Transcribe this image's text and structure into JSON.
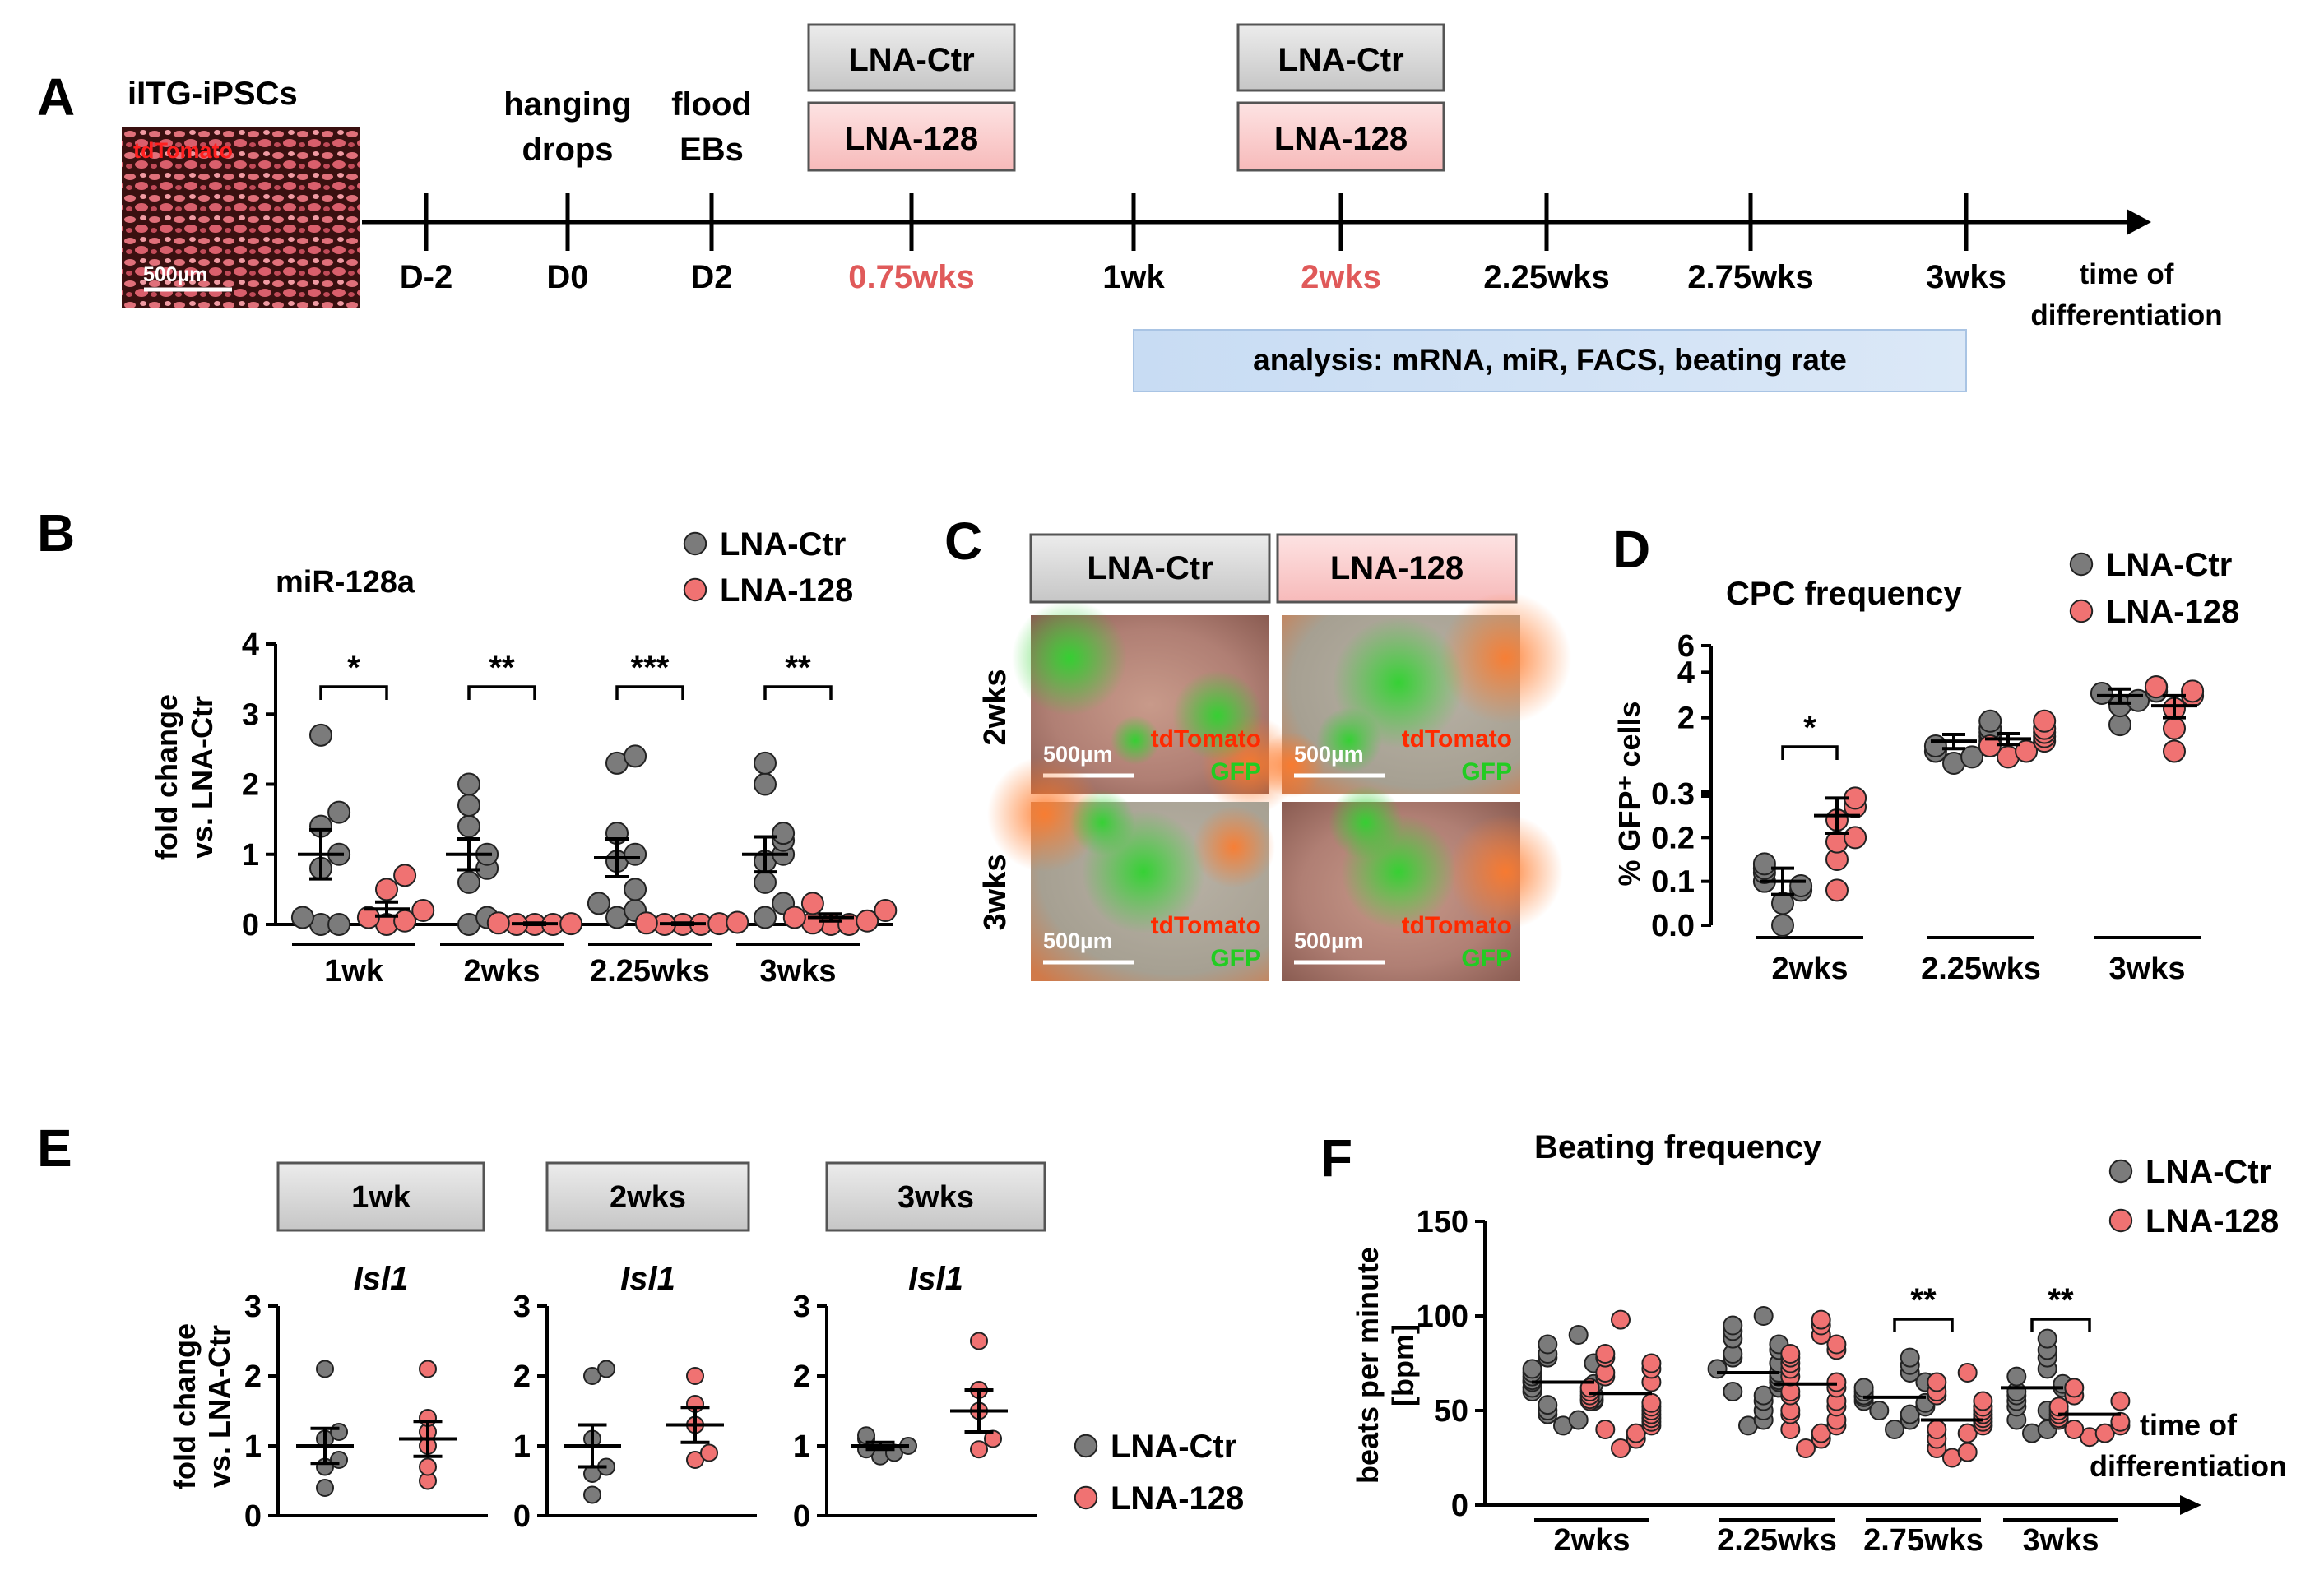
{
  "colors": {
    "ctr": "#7b7b7b",
    "lna128": "#f07272",
    "red_label": "#e05a5a",
    "tdtomato": "#ff2a00",
    "gfp": "#22cc22",
    "analysis_bar": "#cfe1f5"
  },
  "panelA": {
    "letter": "A",
    "ipsc_title": "iITG-iPSCs",
    "ipsc_overlay": "tdTomato",
    "ipsc_scale": "500µm",
    "steps": [
      {
        "id": "d-2",
        "upper": "",
        "lower": "",
        "tick": "D-2",
        "highlight": false
      },
      {
        "id": "d0",
        "upper": "hanging",
        "lower": "drops",
        "tick": "D0",
        "highlight": false
      },
      {
        "id": "d2",
        "upper": "flood",
        "lower": "EBs",
        "tick": "D2",
        "highlight": false
      },
      {
        "id": "0.75wks",
        "upper": "",
        "lower": "",
        "tick": "0.75wks",
        "highlight": true
      },
      {
        "id": "1wk",
        "upper": "",
        "lower": "",
        "tick": "1wk",
        "highlight": false
      },
      {
        "id": "2wks",
        "upper": "",
        "lower": "",
        "tick": "2wks",
        "highlight": true
      },
      {
        "id": "2.25wks",
        "upper": "",
        "lower": "",
        "tick": "2.25wks",
        "highlight": false
      },
      {
        "id": "2.75wks",
        "upper": "",
        "lower": "",
        "tick": "2.75wks",
        "highlight": false
      },
      {
        "id": "3wks",
        "upper": "",
        "lower": "",
        "tick": "3wks",
        "highlight": false
      }
    ],
    "treatment_boxes": [
      {
        "at": "0.75wks",
        "ctr": "LNA-Ctr",
        "lna": "LNA-128"
      },
      {
        "at": "2wks",
        "ctr": "LNA-Ctr",
        "lna": "LNA-128"
      }
    ],
    "axis_label_1": "time of",
    "axis_label_2": "differentiation",
    "analysis": "analysis: mRNA, miR, FACS, beating rate"
  },
  "chart_data": [
    {
      "panel": "B",
      "type": "scatter",
      "title": "miR-128a",
      "ylabel_1": "fold change",
      "ylabel_2": "vs. LNA-Ctr",
      "ylim": [
        0,
        4
      ],
      "yticks": [
        "0",
        "1",
        "2",
        "3",
        "4"
      ],
      "categories": [
        "1wk",
        "2wks",
        "2.25wks",
        "3wks"
      ],
      "legend": [
        "LNA-Ctr",
        "LNA-128"
      ],
      "series": [
        {
          "name": "LNA-Ctr",
          "points": [
            [
              2.7,
              1.6,
              1.4,
              1.0,
              0.8,
              0.1,
              0.0,
              0.0
            ],
            [
              2.0,
              1.7,
              1.4,
              1.0,
              0.8,
              0.6,
              0.1,
              0.0
            ],
            [
              2.4,
              2.3,
              1.3,
              1.0,
              0.9,
              0.5,
              0.3,
              0.2,
              0.1
            ],
            [
              2.3,
              2.0,
              1.3,
              1.2,
              1.0,
              0.9,
              0.6,
              0.3,
              0.1
            ]
          ],
          "means": [
            1.0,
            1.0,
            0.95,
            1.0
          ],
          "sems": [
            0.35,
            0.22,
            0.27,
            0.25
          ]
        },
        {
          "name": "LNA-128",
          "points": [
            [
              0.7,
              0.5,
              0.2,
              0.1,
              0.05,
              0.0
            ],
            [
              0.02,
              0.0,
              0.0,
              0.01,
              0.0
            ],
            [
              0.03,
              0.0,
              0.01,
              0.0,
              0.0,
              0.02
            ],
            [
              0.3,
              0.2,
              0.1,
              0.05,
              0.0,
              0.0,
              0.02
            ]
          ],
          "means": [
            0.22,
            0.01,
            0.01,
            0.1
          ],
          "sems": [
            0.1,
            0.01,
            0.01,
            0.05
          ]
        }
      ],
      "significance": [
        "*",
        "**",
        "***",
        "**"
      ]
    },
    {
      "panel": "D",
      "type": "scatter",
      "title": "CPC frequency",
      "ylabel": "% GFP⁺ cells",
      "yticks": [
        "0.0",
        "0.1",
        "0.2",
        "0.3",
        "2",
        "4",
        "6"
      ],
      "categories": [
        "2wks",
        "2.25wks",
        "3wks"
      ],
      "legend": [
        "LNA-Ctr",
        "LNA-128"
      ],
      "series": [
        {
          "name": "LNA-Ctr",
          "points": [
            [
              0.12,
              0.14,
              0.05,
              0.1,
              0.09,
              0.13,
              0.0,
              0.08
            ],
            [
              1.6,
              1.4,
              1.2,
              1.5,
              1.7,
              1.0,
              1.1,
              1.3,
              1.9
            ],
            [
              3.0,
              2.6,
              2.4,
              2.9,
              3.2,
              1.8
            ]
          ],
          "means": [
            0.1,
            1.4,
            2.8
          ],
          "sems": [
            0.03,
            0.15,
            0.3
          ]
        },
        {
          "name": "LNA-128",
          "points": [
            [
              0.29,
              0.27,
              0.24,
              0.2,
              0.19,
              0.15,
              0.08
            ],
            [
              1.7,
              1.6,
              1.4,
              1.2,
              1.5,
              1.9,
              1.1,
              1.3
            ],
            [
              3.2,
              2.8,
              2.3,
              1.7,
              3.0,
              1.2
            ]
          ],
          "means": [
            0.25,
            1.45,
            2.4
          ],
          "sems": [
            0.04,
            0.12,
            0.4
          ]
        }
      ],
      "significance": [
        "*",
        "",
        ""
      ]
    },
    {
      "panel": "E",
      "type": "scatter",
      "ylabel_1": "fold change",
      "ylabel_2": "vs. LNA-Ctr",
      "subpanels": [
        {
          "header": "1wk",
          "gene": "Isl1",
          "yticks": [
            "0",
            "1",
            "2",
            "3"
          ],
          "ctr": [
            2.1,
            1.2,
            1.1,
            0.8,
            0.7,
            0.4
          ],
          "lna": [
            2.1,
            1.4,
            1.2,
            1.0,
            0.7,
            0.5
          ],
          "ctr_mean": 1.0,
          "ctr_sem": 0.25,
          "lna_mean": 1.1,
          "lna_sem": 0.25
        },
        {
          "header": "2wks",
          "gene": "Isl1",
          "yticks": [
            "0",
            "1",
            "2",
            "3"
          ],
          "ctr": [
            2.1,
            2.0,
            1.1,
            0.7,
            0.6,
            0.3
          ],
          "lna": [
            2.0,
            1.6,
            1.3,
            0.9,
            0.8
          ],
          "ctr_mean": 1.0,
          "ctr_sem": 0.3,
          "lna_mean": 1.3,
          "lna_sem": 0.25
        },
        {
          "header": "3wks",
          "gene": "Isl1",
          "yticks": [
            "0",
            "1",
            "2",
            "3"
          ],
          "ctr": [
            1.15,
            1.1,
            1.0,
            0.95,
            0.9,
            0.85
          ],
          "lna": [
            2.5,
            1.8,
            1.5,
            1.1,
            0.95
          ],
          "ctr_mean": 1.0,
          "ctr_sem": 0.05,
          "lna_mean": 1.5,
          "lna_sem": 0.3
        }
      ],
      "legend": [
        "LNA-Ctr",
        "LNA-128"
      ]
    },
    {
      "panel": "F",
      "type": "scatter",
      "title": "Beating frequency",
      "ylabel_1": "beats per minute",
      "ylabel_2": "[bpm]",
      "ylim": [
        0,
        150
      ],
      "yticks": [
        "0",
        "50",
        "100",
        "150"
      ],
      "categories": [
        "2wks",
        "2.25wks",
        "2.75wks",
        "3wks"
      ],
      "axis_label_1": "time of",
      "axis_label_2": "differentiation",
      "legend": [
        "LNA-Ctr",
        "LNA-128"
      ],
      "series": [
        {
          "name": "LNA-Ctr",
          "points": [
            [
              90,
              85,
              80,
              78,
              75,
              72,
              70,
              68,
              66,
              65,
              64,
              62,
              60,
              58,
              56,
              55,
              53,
              50,
              48,
              45,
              42
            ],
            [
              100,
              95,
              92,
              88,
              85,
              82,
              80,
              78,
              75,
              72,
              70,
              68,
              66,
              65,
              62,
              60,
              58,
              55,
              50,
              45,
              42
            ],
            [
              78,
              74,
              70,
              65,
              62,
              60,
              58,
              57,
              55,
              54,
              52,
              50,
              48,
              45,
              40
            ],
            [
              88,
              82,
              78,
              72,
              68,
              64,
              62,
              60,
              58,
              55,
              52,
              50,
              45,
              40,
              38
            ]
          ],
          "means": [
            65,
            70,
            57,
            62
          ]
        },
        {
          "name": "LNA-128",
          "points": [
            [
              98,
              80,
              78,
              75,
              72,
              70,
              68,
              65,
              62,
              60,
              58,
              56,
              55,
              54,
              52,
              50,
              48,
              46,
              44,
              42,
              40,
              38,
              35,
              30
            ],
            [
              98,
              95,
              90,
              85,
              82,
              80,
              78,
              75,
              72,
              68,
              65,
              62,
              60,
              58,
              55,
              52,
              50,
              48,
              45,
              42,
              40,
              38,
              35,
              30
            ],
            [
              70,
              65,
              60,
              58,
              55,
              52,
              50,
              48,
              46,
              44,
              42,
              40,
              38,
              35,
              30,
              28,
              25
            ],
            [
              62,
              58,
              55,
              52,
              50,
              48,
              46,
              45,
              44,
              42,
              40,
              38,
              36
            ]
          ],
          "means": [
            59,
            64,
            45,
            48
          ]
        }
      ],
      "significance": [
        "",
        "",
        "**",
        "**"
      ]
    }
  ],
  "panelB": {
    "letter": "B"
  },
  "panelC": {
    "letter": "C",
    "col_headers": [
      "LNA-Ctr",
      "LNA-128"
    ],
    "row_labels": [
      "2wks",
      "3wks"
    ],
    "overlay_red": "tdTomato",
    "overlay_green": "GFP",
    "scale": "500µm"
  },
  "panelD": {
    "letter": "D"
  },
  "panelE": {
    "letter": "E"
  },
  "panelF": {
    "letter": "F"
  }
}
